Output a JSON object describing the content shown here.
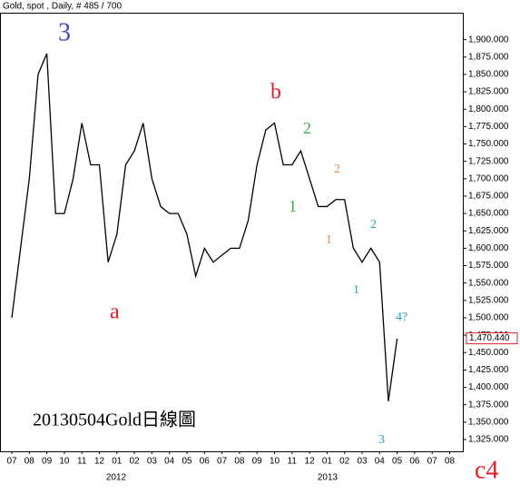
{
  "chart_data": {
    "type": "line",
    "title": "Gold, spot , Daily, # 485 / 700",
    "categories": [
      "07",
      null,
      "08",
      null,
      "09",
      null,
      "10",
      null,
      "11",
      null,
      "12",
      null,
      "01",
      null,
      "02",
      null,
      "03",
      null,
      "04",
      null,
      "05",
      null,
      "06",
      null,
      "07",
      null,
      "08",
      null,
      "09",
      null,
      "10",
      null,
      "11",
      null,
      "12",
      null,
      "01",
      null,
      "02",
      null,
      "03",
      null,
      "04",
      null,
      "05",
      null,
      "06",
      null,
      "07",
      null,
      "08",
      null
    ],
    "year_labels": [
      "2012",
      "2013"
    ],
    "series": [
      {
        "name": "Gold",
        "color": "#000000",
        "values": [
          1500,
          1600,
          1700,
          1850,
          1880,
          1650,
          1650,
          1700,
          1780,
          1720,
          1720,
          1580,
          1620,
          1720,
          1740,
          1780,
          1700,
          1660,
          1650,
          1650,
          1620,
          1560,
          1600,
          1580,
          1590,
          1600,
          1600,
          1640,
          1720,
          1770,
          1780,
          1720,
          1720,
          1740,
          1700,
          1660,
          1660,
          1670,
          1670,
          1600,
          1580,
          1600,
          1580,
          1380,
          1470,
          null,
          null,
          null,
          null,
          null,
          null,
          null
        ]
      }
    ],
    "last_price": {
      "value": 1470.44,
      "label": "1,470.440"
    },
    "ylim": [
      1308,
      1957
    ],
    "yticks": [
      {
        "value": 1325,
        "label": "1,325.000"
      },
      {
        "value": 1350,
        "label": "1,350.000"
      },
      {
        "value": 1375,
        "label": "1,375.000"
      },
      {
        "value": 1400,
        "label": "1,400.000"
      },
      {
        "value": 1425,
        "label": "1,425.000"
      },
      {
        "value": 1450,
        "label": "1,450.000"
      },
      {
        "value": 1475,
        "label": "1,475.000"
      },
      {
        "value": 1500,
        "label": "1,500.000"
      },
      {
        "value": 1525,
        "label": "1,525.000"
      },
      {
        "value": 1550,
        "label": "1,550.000"
      },
      {
        "value": 1575,
        "label": "1,575.000"
      },
      {
        "value": 1600,
        "label": "1,600.000"
      },
      {
        "value": 1625,
        "label": "1,625.000"
      },
      {
        "value": 1650,
        "label": "1,650.000"
      },
      {
        "value": 1675,
        "label": "1,675.000"
      },
      {
        "value": 1700,
        "label": "1,700.000"
      },
      {
        "value": 1725,
        "label": "1,725.000"
      },
      {
        "value": 1750,
        "label": "1,750.000"
      },
      {
        "value": 1775,
        "label": "1,775.000"
      },
      {
        "value": 1800,
        "label": "1,800.000"
      },
      {
        "value": 1825,
        "label": "1,825.000"
      },
      {
        "value": 1850,
        "label": "1,850.000"
      },
      {
        "value": 1875,
        "label": "1,875.000"
      },
      {
        "value": 1900,
        "label": "1,900.000"
      }
    ],
    "annotations": [
      {
        "text": "3",
        "color": "#3b4bc8"
      },
      {
        "text": "a",
        "color": "#e0202a"
      },
      {
        "text": "b",
        "color": "#e0202a"
      },
      {
        "text": "1",
        "color": "#3cb04a"
      },
      {
        "text": "2",
        "color": "#3cb04a"
      },
      {
        "text": "1",
        "color": "#f08a40"
      },
      {
        "text": "2",
        "color": "#f08a40"
      },
      {
        "text": "1",
        "color": "#2aa0d0"
      },
      {
        "text": "2",
        "color": "#2aa0d0"
      },
      {
        "text": "3",
        "color": "#2aa0d0"
      },
      {
        "text": "4?",
        "color": "#2aa0d0"
      },
      {
        "text": "c4",
        "color": "#e0202a"
      },
      {
        "text": "20130504Gold日線圖",
        "color": "#000000"
      }
    ]
  }
}
